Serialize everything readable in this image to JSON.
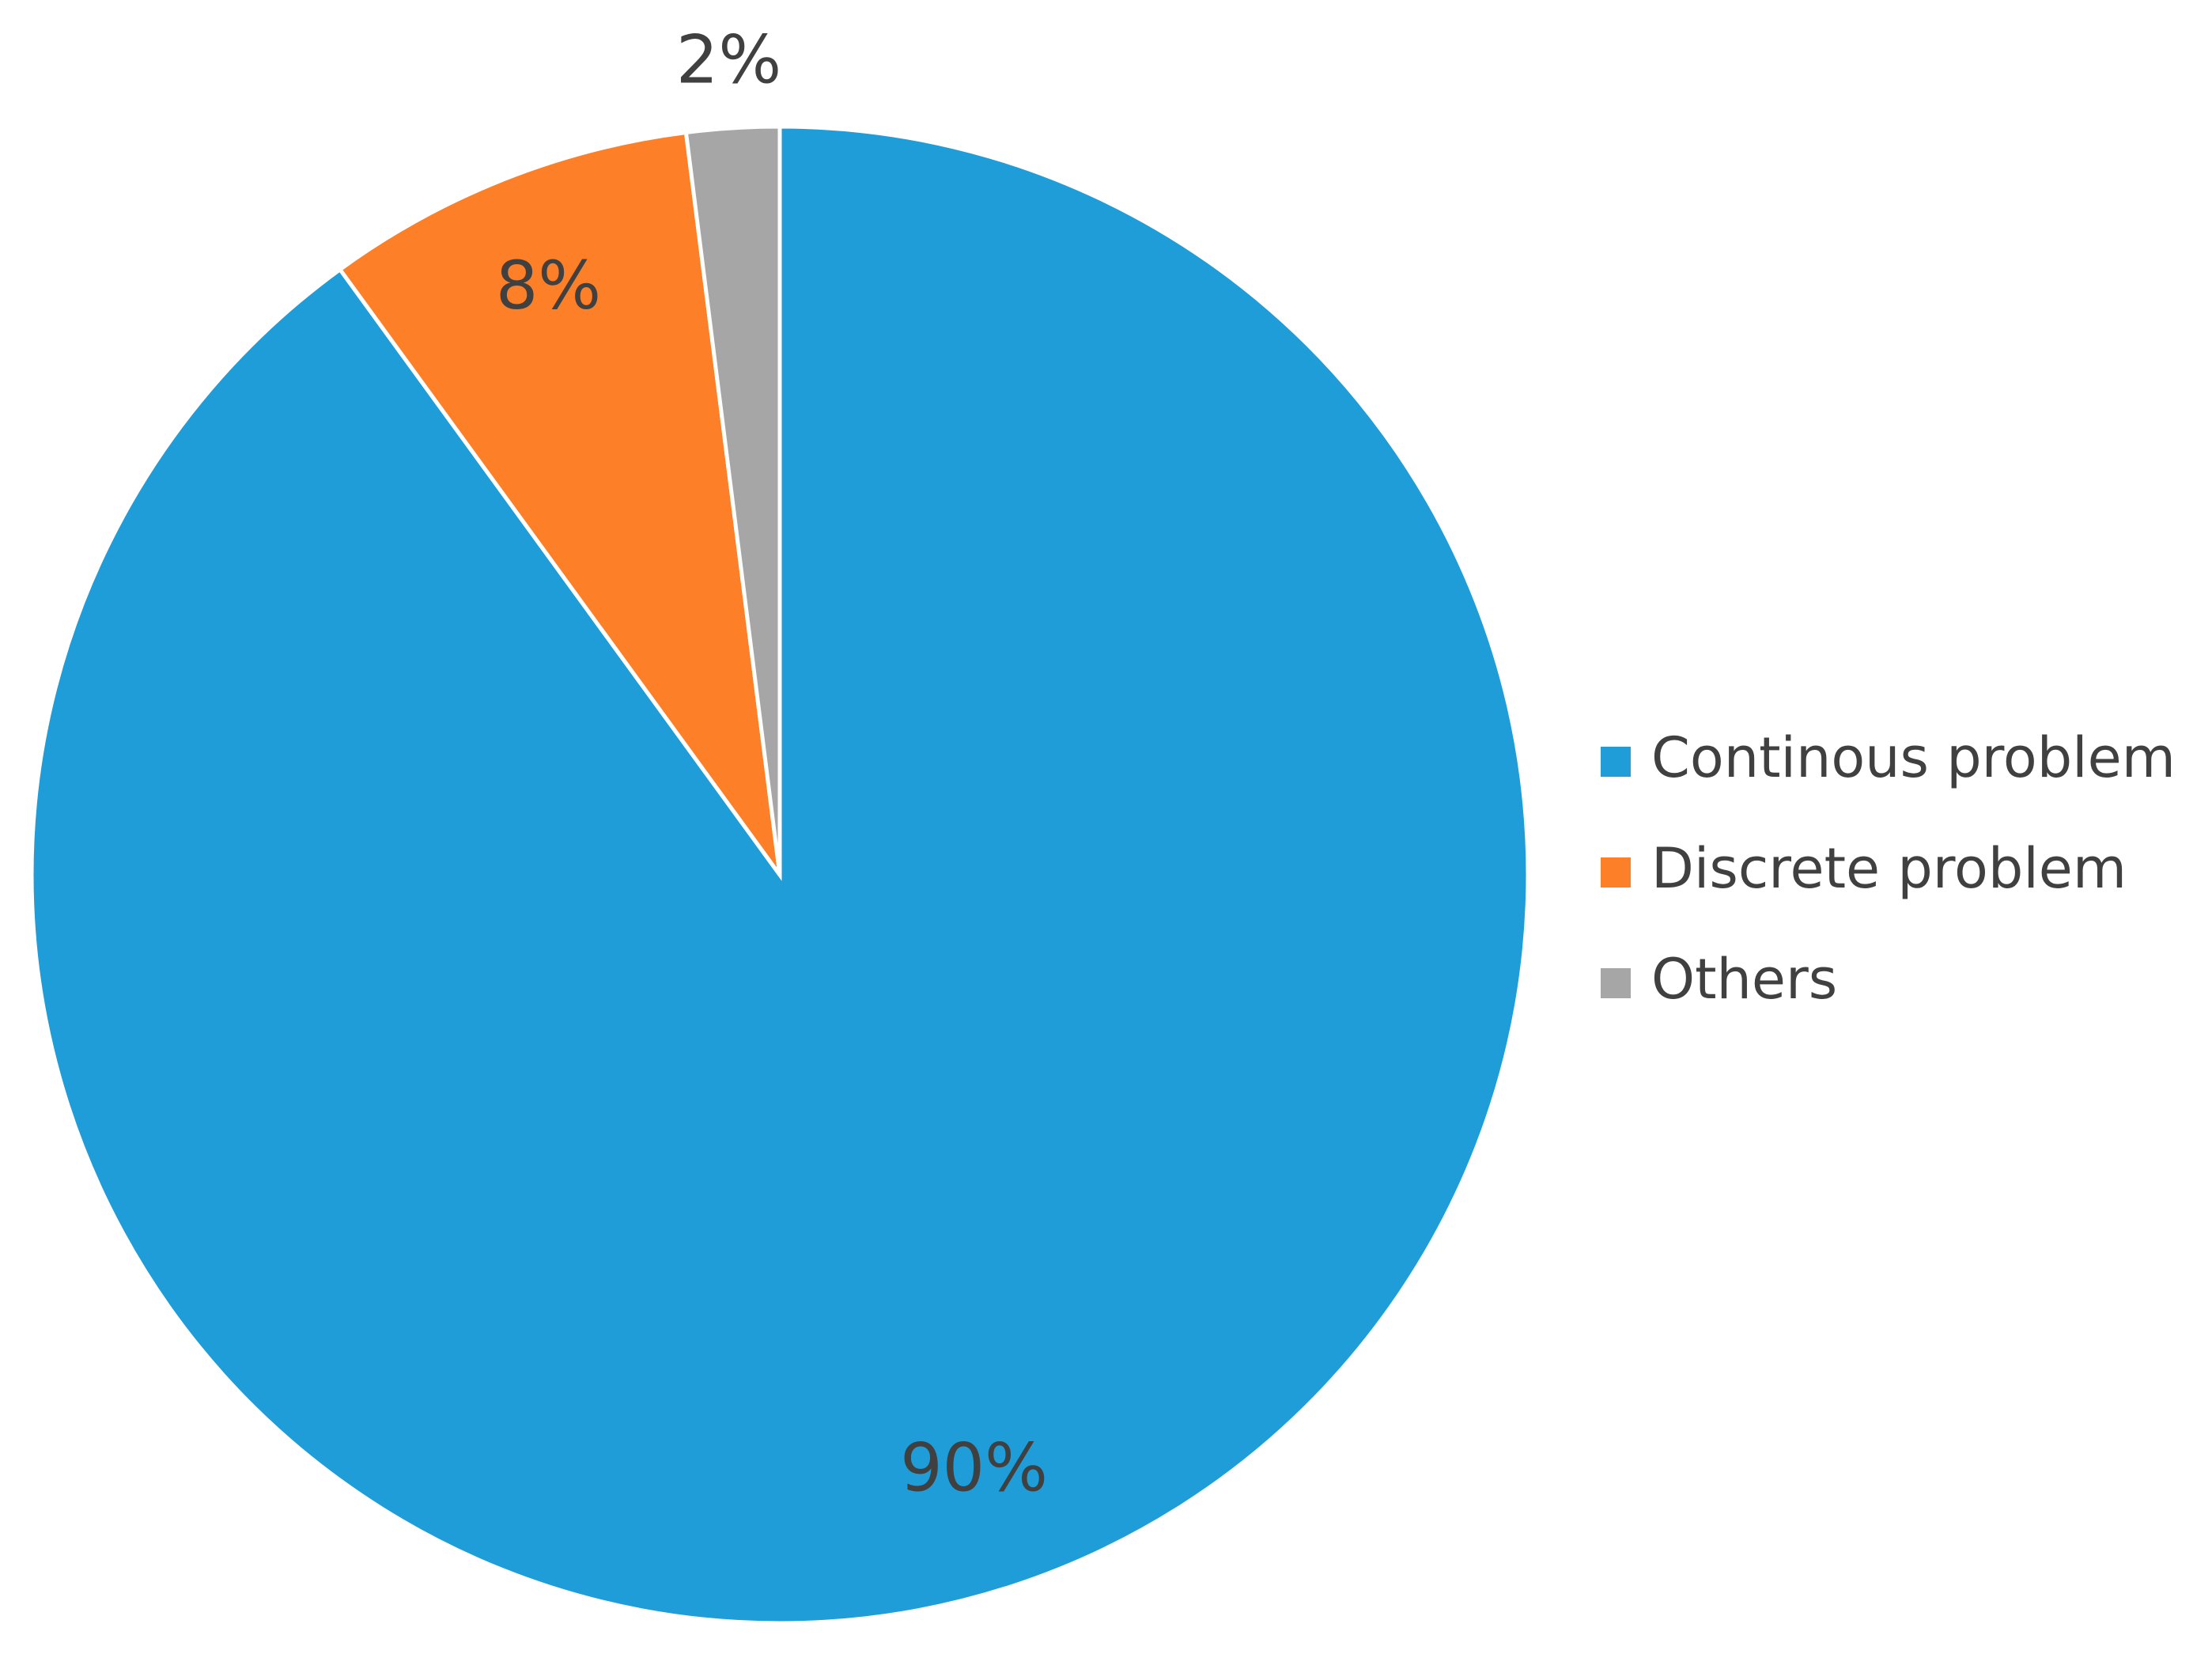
{
  "chart_data": {
    "type": "pie",
    "categories": [
      "Continous problem",
      "Discrete problem",
      "Others"
    ],
    "values": [
      90,
      8,
      2
    ],
    "value_labels": [
      "90%",
      "8%",
      "2%"
    ],
    "colors": [
      "#1f9dd9",
      "#fd7f28",
      "#a6a6a6"
    ]
  }
}
